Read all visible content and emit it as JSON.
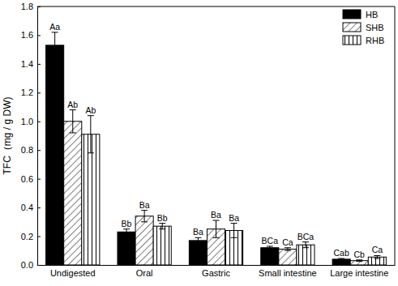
{
  "chart_data": {
    "type": "bar",
    "y_label": "TFC（mg / g DW)",
    "categories": [
      "Undigested",
      "Oral",
      "Gastric",
      "Small intestine",
      "Large intestine"
    ],
    "series": [
      {
        "name": "HB",
        "color": "#000000",
        "values": [
          1.53,
          0.23,
          0.17,
          0.12,
          0.04
        ],
        "errors": [
          0.09,
          0.02,
          0.02,
          0.01,
          0.005
        ],
        "letters": [
          "Aa",
          "Bb",
          "Ba",
          "BCa",
          "Cab"
        ]
      },
      {
        "name": "SHB",
        "color": "#ffffff",
        "values": [
          1.0,
          0.34,
          0.25,
          0.11,
          0.03
        ],
        "errors": [
          0.08,
          0.04,
          0.06,
          0.01,
          0.005
        ],
        "letters": [
          "Ab",
          "Ba",
          "Ba",
          "Ca",
          "Cb"
        ]
      },
      {
        "name": "RHB",
        "color": "#ffffff",
        "values": [
          0.91,
          0.27,
          0.24,
          0.14,
          0.055
        ],
        "errors": [
          0.13,
          0.02,
          0.05,
          0.02,
          0.01
        ],
        "letters": [
          "Ab",
          "Bb",
          "Ba",
          "BCa",
          "Ca"
        ]
      }
    ],
    "ylim": [
      0,
      1.8
    ],
    "yticks": [
      {
        "value": 0,
        "label": "0.0"
      },
      0.2,
      0.4,
      0.6,
      0.8,
      {
        "value": 1,
        "label": "1.0"
      },
      1.2,
      1.4,
      1.6,
      1.8
    ],
    "grid": false,
    "legend": "upper right"
  }
}
